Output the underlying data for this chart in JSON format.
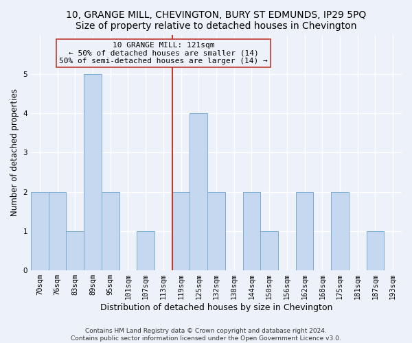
{
  "title": "10, GRANGE MILL, CHEVINGTON, BURY ST EDMUNDS, IP29 5PQ",
  "subtitle": "Size of property relative to detached houses in Chevington",
  "xlabel": "Distribution of detached houses by size in Chevington",
  "ylabel": "Number of detached properties",
  "categories": [
    "70sqm",
    "76sqm",
    "83sqm",
    "89sqm",
    "95sqm",
    "101sqm",
    "107sqm",
    "113sqm",
    "119sqm",
    "125sqm",
    "132sqm",
    "138sqm",
    "144sqm",
    "150sqm",
    "156sqm",
    "162sqm",
    "168sqm",
    "175sqm",
    "181sqm",
    "187sqm",
    "193sqm"
  ],
  "values": [
    2,
    2,
    1,
    5,
    2,
    0,
    1,
    0,
    2,
    4,
    2,
    0,
    2,
    1,
    0,
    2,
    0,
    2,
    0,
    1,
    0
  ],
  "bar_color": "#c5d8f0",
  "bar_edgecolor": "#7aadd4",
  "vline_x": 7.5,
  "vline_color": "#c0392b",
  "annotation_line1": "10 GRANGE MILL: 121sqm",
  "annotation_line2": "← 50% of detached houses are smaller (14)",
  "annotation_line3": "50% of semi-detached houses are larger (14) →",
  "annotation_box_edgecolor": "#c0392b",
  "annotation_box_facecolor": "#edf2fa",
  "ylim": [
    0,
    6
  ],
  "yticks": [
    0,
    1,
    2,
    3,
    4,
    5,
    6
  ],
  "title_fontsize": 10,
  "subtitle_fontsize": 9.5,
  "xlabel_fontsize": 9,
  "ylabel_fontsize": 8.5,
  "tick_fontsize": 7.5,
  "annotation_fontsize": 8,
  "footer_text": "Contains HM Land Registry data © Crown copyright and database right 2024.\nContains public sector information licensed under the Open Government Licence v3.0.",
  "footer_fontsize": 6.5,
  "background_color": "#edf2fa",
  "grid_color": "#ffffff",
  "grid_linewidth": 1.0
}
